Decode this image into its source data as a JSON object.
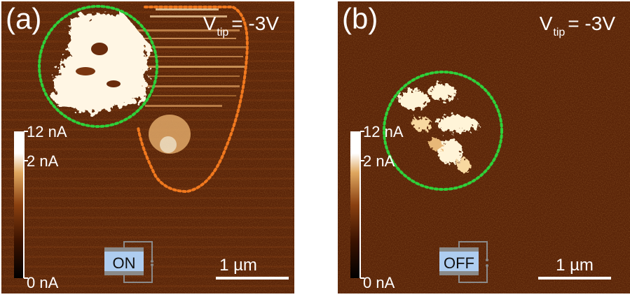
{
  "panels": [
    {
      "label": "(a)",
      "vtip": {
        "prefix": "V",
        "subscript": "tip",
        "value": "= -3V"
      },
      "colorbar": {
        "top": "12 nA",
        "mid": "2 nA",
        "bottom": "0 nA"
      },
      "switch_state": "ON",
      "scalebar": "1 µm"
    },
    {
      "label": "(b)",
      "vtip": {
        "prefix": "V",
        "subscript": "tip",
        "value": "= -3V"
      },
      "colorbar": {
        "top": "12 nA",
        "mid": "2 nA",
        "bottom": "0 nA"
      },
      "switch_state": "OFF",
      "scalebar": "1 µm"
    }
  ],
  "colors": {
    "background_map": "#5a2408",
    "bright_region": "#fff4d8",
    "green_outline": "#2fd03a",
    "orange_outline": "#f0781e",
    "switch_fill": "#aecdf0"
  }
}
